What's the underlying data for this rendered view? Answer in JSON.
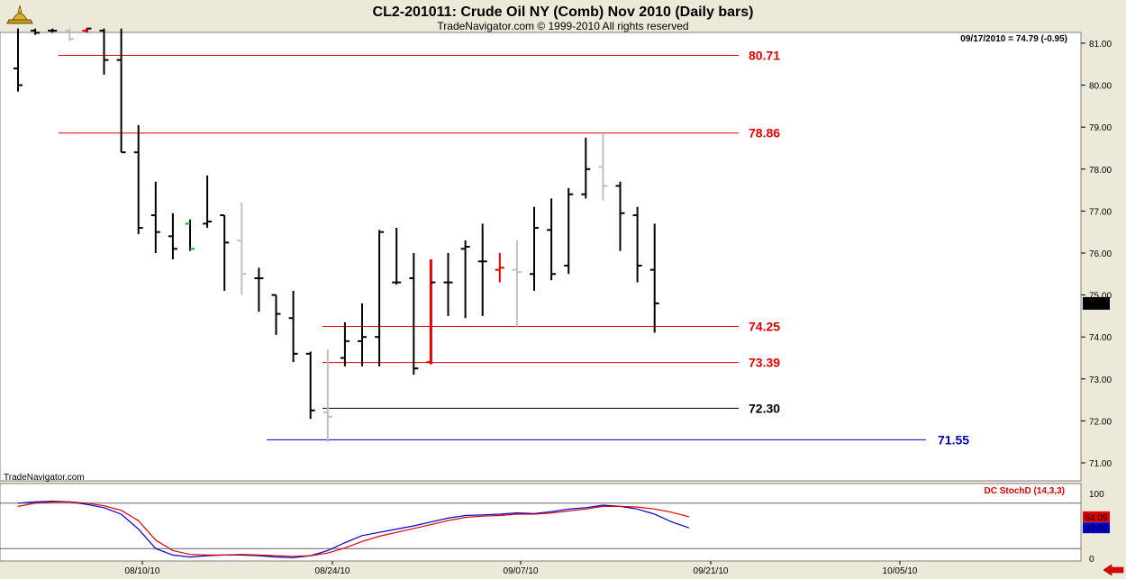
{
  "header": {
    "title": "CL2-201011:  Crude Oil NY (Comb) Nov 2010  (Daily bars)",
    "subtitle": "TradeNavigator.com © 1999-2010 All rights reserved",
    "last_quote": "09/17/2010 = 74.79 (-0.95)",
    "watermark": "TradeNavigator.com",
    "logo_icon": "oil-lamp-icon"
  },
  "colors": {
    "background": "#FFFFFF",
    "frame": "#ECE9D8",
    "up_bar": "#000000",
    "down_bar": "#C0C0C0",
    "highlight_red": "#E00000",
    "level_red": "#E00000",
    "level_black": "#000000",
    "level_blue": "#0000C0",
    "stoch_k": "#0000CC",
    "stoch_d": "#DD0000",
    "arrow": "#E00000"
  },
  "chart_data": [
    {
      "type": "ohlc",
      "title": "CL2-201011:  Crude Oil NY (Comb) Nov 2010  (Daily bars)",
      "ylim": [
        70.8,
        81.35
      ],
      "yticks": [
        "81.00",
        "80.00",
        "79.00",
        "78.00",
        "77.00",
        "76.00",
        "75.00",
        "74.00",
        "73.00",
        "72.00",
        "71.00"
      ],
      "xticks": [
        "08/10/10",
        "08/24/10",
        "09/07/10",
        "09/21/10",
        "10/05/10"
      ],
      "last_price_label": "74.79",
      "bars": [
        {
          "o": 80.4,
          "h": 81.4,
          "l": 79.85,
          "c": 80.0,
          "color": "up"
        },
        {
          "o": 81.3,
          "h": 81.4,
          "l": 81.2,
          "c": 81.25,
          "color": "up"
        },
        {
          "o": 81.3,
          "h": 81.4,
          "l": 81.25,
          "c": 81.3,
          "color": "up"
        },
        {
          "o": 81.3,
          "h": 81.4,
          "l": 81.05,
          "c": 81.1,
          "color": "down"
        },
        {
          "o": 81.3,
          "h": 81.4,
          "l": 81.25,
          "c": 81.35,
          "color": "red"
        },
        {
          "o": 81.3,
          "h": 81.4,
          "l": 80.25,
          "c": 80.6,
          "color": "up"
        },
        {
          "o": 80.6,
          "h": 81.4,
          "l": 78.4,
          "c": 78.4,
          "color": "up"
        },
        {
          "o": 78.4,
          "h": 79.05,
          "l": 76.45,
          "c": 76.6,
          "color": "up"
        },
        {
          "o": 76.9,
          "h": 77.7,
          "l": 76.0,
          "c": 76.5,
          "color": "up"
        },
        {
          "o": 76.4,
          "h": 76.95,
          "l": 75.85,
          "c": 76.1,
          "color": "up"
        },
        {
          "o": 76.7,
          "h": 76.8,
          "l": 76.05,
          "c": 76.1,
          "color": "green"
        },
        {
          "o": 76.7,
          "h": 77.85,
          "l": 76.6,
          "c": 76.75,
          "color": "up"
        },
        {
          "o": 76.9,
          "h": 76.9,
          "l": 75.1,
          "c": 76.25,
          "color": "up"
        },
        {
          "o": 76.3,
          "h": 77.2,
          "l": 75.0,
          "c": 75.5,
          "color": "down"
        },
        {
          "o": 75.4,
          "h": 75.65,
          "l": 74.6,
          "c": 75.4,
          "color": "up"
        },
        {
          "o": 75.0,
          "h": 75.0,
          "l": 74.05,
          "c": 74.55,
          "color": "up"
        },
        {
          "o": 74.45,
          "h": 75.1,
          "l": 73.4,
          "c": 73.6,
          "color": "up"
        },
        {
          "o": 73.6,
          "h": 73.65,
          "l": 72.05,
          "c": 72.25,
          "color": "up"
        },
        {
          "o": 72.2,
          "h": 73.7,
          "l": 71.5,
          "c": 72.1,
          "color": "down"
        },
        {
          "o": 73.5,
          "h": 74.35,
          "l": 73.3,
          "c": 73.9,
          "color": "up"
        },
        {
          "o": 73.9,
          "h": 74.8,
          "l": 73.3,
          "c": 74.0,
          "color": "up"
        },
        {
          "o": 74.0,
          "h": 76.55,
          "l": 73.3,
          "c": 76.5,
          "color": "up"
        },
        {
          "o": 75.3,
          "h": 76.6,
          "l": 75.25,
          "c": 75.3,
          "color": "up"
        },
        {
          "o": 75.4,
          "h": 76.0,
          "l": 73.1,
          "c": 73.25,
          "color": "up"
        },
        {
          "o": 73.4,
          "h": 75.85,
          "l": 73.35,
          "c": 75.3,
          "color": "red"
        },
        {
          "o": 75.3,
          "h": 76.0,
          "l": 74.5,
          "c": 75.3,
          "color": "up"
        },
        {
          "o": 76.1,
          "h": 76.3,
          "l": 74.45,
          "c": 76.15,
          "color": "up"
        },
        {
          "o": 75.8,
          "h": 76.7,
          "l": 74.5,
          "c": 75.8,
          "color": "up"
        },
        {
          "o": 75.6,
          "h": 76.0,
          "l": 75.3,
          "c": 75.65,
          "color": "red_cross"
        },
        {
          "o": 75.6,
          "h": 76.3,
          "l": 74.25,
          "c": 75.55,
          "color": "down"
        },
        {
          "o": 75.5,
          "h": 77.1,
          "l": 75.1,
          "c": 76.6,
          "color": "up"
        },
        {
          "o": 76.55,
          "h": 77.3,
          "l": 75.35,
          "c": 75.5,
          "color": "up"
        },
        {
          "o": 75.7,
          "h": 77.55,
          "l": 75.5,
          "c": 77.4,
          "color": "up"
        },
        {
          "o": 77.4,
          "h": 78.75,
          "l": 77.3,
          "c": 78.0,
          "color": "up"
        },
        {
          "o": 78.05,
          "h": 78.85,
          "l": 77.25,
          "c": 77.6,
          "color": "down"
        },
        {
          "o": 77.6,
          "h": 77.7,
          "l": 76.05,
          "c": 76.95,
          "color": "up"
        },
        {
          "o": 76.9,
          "h": 77.1,
          "l": 75.3,
          "c": 75.7,
          "color": "up"
        },
        {
          "o": 75.6,
          "h": 76.7,
          "l": 74.1,
          "c": 74.8,
          "color": "up"
        }
      ],
      "levels": [
        {
          "value": 80.71,
          "label": "80.71",
          "color": "red"
        },
        {
          "value": 78.86,
          "label": "78.86",
          "color": "red"
        },
        {
          "value": 74.25,
          "label": "74.25",
          "color": "red"
        },
        {
          "value": 73.39,
          "label": "73.39",
          "color": "red"
        },
        {
          "value": 72.3,
          "label": "72.30",
          "color": "black"
        },
        {
          "value": 71.55,
          "label": "71.55",
          "color": "blue"
        }
      ]
    },
    {
      "type": "line",
      "title": "DC StochD (14,3,3)",
      "ylim": [
        0,
        100
      ],
      "yticks": [
        "100",
        "0"
      ],
      "reference_lines": [
        85,
        15
      ],
      "last_labels": [
        "64.09",
        "47.46"
      ],
      "series": [
        {
          "name": "%K",
          "color": "blue",
          "values": [
            85,
            87,
            88,
            87,
            83,
            78,
            68,
            45,
            15,
            5,
            2,
            4,
            5,
            5,
            4,
            2,
            1,
            4,
            12,
            24,
            35,
            40,
            45,
            50,
            56,
            62,
            66,
            67,
            68,
            70,
            69,
            72,
            76,
            78,
            82,
            80,
            76,
            68,
            56,
            47
          ]
        },
        {
          "name": "%D",
          "color": "red",
          "values": [
            80,
            85,
            87,
            87,
            85,
            81,
            74,
            58,
            28,
            12,
            6,
            5,
            5,
            6,
            5,
            4,
            3,
            4,
            8,
            16,
            26,
            34,
            40,
            46,
            52,
            58,
            63,
            65,
            66,
            68,
            68,
            70,
            73,
            76,
            80,
            80,
            79,
            76,
            71,
            64
          ]
        }
      ]
    }
  ]
}
